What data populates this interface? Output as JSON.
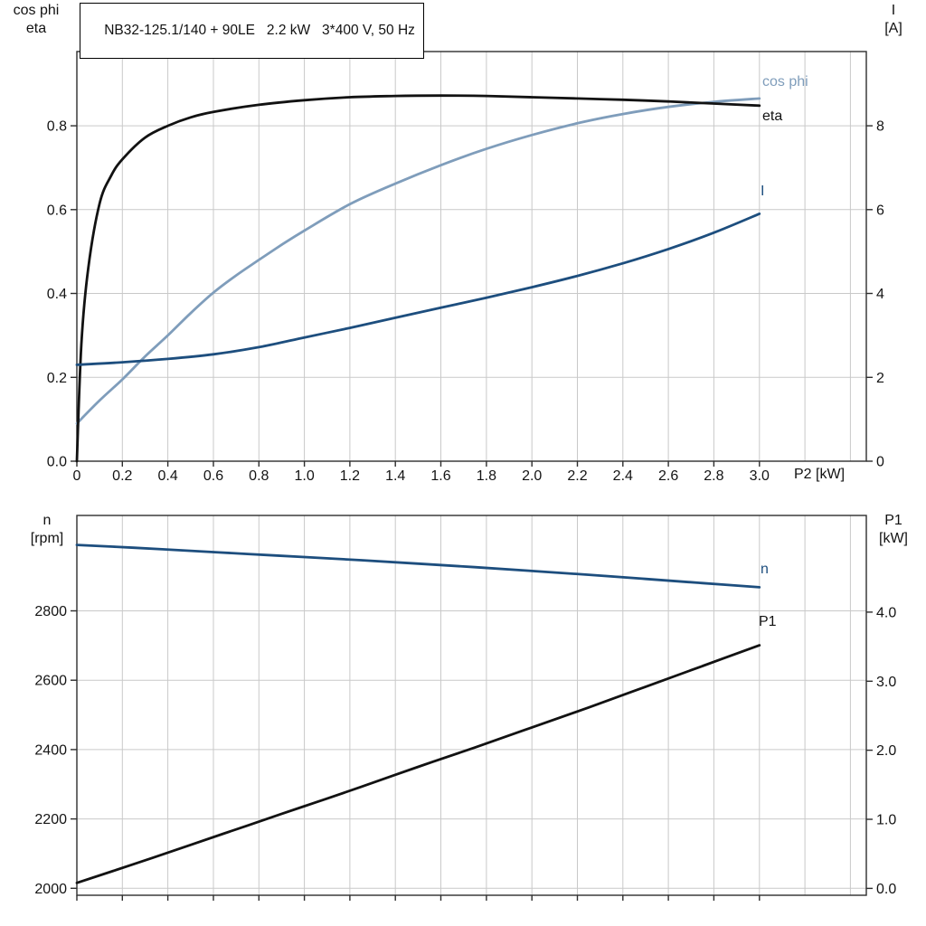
{
  "colors": {
    "background": "#ffffff",
    "grid": "#c9c9c9",
    "axis": "#2e2e2e",
    "curve_black": "#121212",
    "curve_light_blue": "#7f9dbb",
    "curve_dark_blue": "#1d4e7e"
  },
  "chart_data": [
    {
      "type": "line",
      "title": "NB32-125.1/140 + 90LE   2.2 kW   3*400 V, 50 Hz",
      "xlabel": "P2 [kW]",
      "xlim": [
        0,
        3.47
      ],
      "x_tick_values": [
        0,
        0.2,
        0.4,
        0.6,
        0.8,
        1.0,
        1.2,
        1.4,
        1.6,
        1.8,
        2.0,
        2.2,
        2.4,
        2.6,
        2.8,
        3.0
      ],
      "x_tick_labels": [
        "0",
        "0.2",
        "0.4",
        "0.6",
        "0.8",
        "1.0",
        "1.2",
        "1.4",
        "1.6",
        "1.8",
        "2.0",
        "2.2",
        "2.4",
        "2.6",
        "2.8",
        "3.0"
      ],
      "grid_x_values": [
        0.2,
        0.4,
        0.6,
        0.8,
        1.0,
        1.2,
        1.4,
        1.6,
        1.8,
        2.0,
        2.2,
        2.4,
        2.6,
        2.8,
        3.0,
        3.2,
        3.4
      ],
      "left_axis": {
        "title_lines": [
          "cos phi",
          "eta"
        ],
        "lim": [
          0,
          0.977
        ],
        "tick_values": [
          0,
          0.2,
          0.4,
          0.6,
          0.8
        ],
        "tick_labels": [
          "0.0",
          "0.2",
          "0.4",
          "0.6",
          "0.8"
        ]
      },
      "right_axis": {
        "title_lines": [
          "I",
          "[A]"
        ],
        "lim": [
          0,
          9.77
        ],
        "tick_values": [
          0,
          2,
          4,
          6,
          8
        ],
        "tick_labels": [
          "0",
          "2",
          "4",
          "6",
          "8"
        ]
      },
      "series": [
        {
          "name": "cos phi",
          "axis": "left",
          "color_key": "curve_light_blue",
          "points": [
            [
              0,
              0.09
            ],
            [
              0.1,
              0.145
            ],
            [
              0.2,
              0.195
            ],
            [
              0.3,
              0.25
            ],
            [
              0.4,
              0.3
            ],
            [
              0.5,
              0.353
            ],
            [
              0.6,
              0.402
            ],
            [
              0.7,
              0.443
            ],
            [
              0.8,
              0.48
            ],
            [
              0.9,
              0.516
            ],
            [
              1.0,
              0.55
            ],
            [
              1.2,
              0.613
            ],
            [
              1.4,
              0.662
            ],
            [
              1.6,
              0.706
            ],
            [
              1.8,
              0.745
            ],
            [
              2.0,
              0.778
            ],
            [
              2.2,
              0.806
            ],
            [
              2.4,
              0.828
            ],
            [
              2.6,
              0.845
            ],
            [
              2.8,
              0.857
            ],
            [
              3.0,
              0.865
            ]
          ]
        },
        {
          "name": "eta",
          "axis": "left",
          "color_key": "curve_black",
          "points": [
            [
              0,
              0
            ],
            [
              0.02,
              0.28
            ],
            [
              0.05,
              0.46
            ],
            [
              0.1,
              0.615
            ],
            [
              0.15,
              0.68
            ],
            [
              0.2,
              0.72
            ],
            [
              0.3,
              0.772
            ],
            [
              0.4,
              0.8
            ],
            [
              0.5,
              0.82
            ],
            [
              0.6,
              0.833
            ],
            [
              0.8,
              0.85
            ],
            [
              1.0,
              0.861
            ],
            [
              1.2,
              0.868
            ],
            [
              1.4,
              0.871
            ],
            [
              1.6,
              0.872
            ],
            [
              1.8,
              0.871
            ],
            [
              2.0,
              0.868
            ],
            [
              2.2,
              0.865
            ],
            [
              2.4,
              0.862
            ],
            [
              2.6,
              0.858
            ],
            [
              2.8,
              0.853
            ],
            [
              3.0,
              0.848
            ]
          ]
        },
        {
          "name": "I",
          "axis": "right",
          "color_key": "curve_dark_blue",
          "points": [
            [
              0,
              2.3
            ],
            [
              0.2,
              2.36
            ],
            [
              0.4,
              2.44
            ],
            [
              0.6,
              2.55
            ],
            [
              0.8,
              2.72
            ],
            [
              1.0,
              2.95
            ],
            [
              1.2,
              3.18
            ],
            [
              1.4,
              3.42
            ],
            [
              1.6,
              3.66
            ],
            [
              1.8,
              3.9
            ],
            [
              2.0,
              4.15
            ],
            [
              2.2,
              4.42
            ],
            [
              2.4,
              4.72
            ],
            [
              2.6,
              5.06
            ],
            [
              2.8,
              5.45
            ],
            [
              3.0,
              5.9
            ]
          ]
        }
      ]
    },
    {
      "type": "line",
      "title": "",
      "xlabel": "",
      "xlim": [
        0,
        3.47
      ],
      "x_tick_values": [
        0,
        0.2,
        0.4,
        0.6,
        0.8,
        1.0,
        1.2,
        1.4,
        1.6,
        1.8,
        2.0,
        2.2,
        2.4,
        2.6,
        2.8,
        3.0
      ],
      "x_tick_labels": [],
      "grid_x_values": [
        0.2,
        0.4,
        0.6,
        0.8,
        1.0,
        1.2,
        1.4,
        1.6,
        1.8,
        2.0,
        2.2,
        2.4,
        2.6,
        2.8,
        3.0,
        3.2,
        3.4
      ],
      "left_axis": {
        "title_lines": [
          "n",
          "[rpm]"
        ],
        "lim": [
          1980,
          3075
        ],
        "tick_values": [
          2000,
          2200,
          2400,
          2600,
          2800
        ],
        "tick_labels": [
          "2000",
          "2200",
          "2400",
          "2600",
          "2800"
        ]
      },
      "right_axis": {
        "title_lines": [
          "P1",
          "[kW]"
        ],
        "lim": [
          -0.1,
          5.4
        ],
        "tick_values": [
          0,
          1,
          2,
          3,
          4
        ],
        "tick_labels": [
          "0.0",
          "1.0",
          "2.0",
          "3.0",
          "4.0"
        ]
      },
      "series": [
        {
          "name": "n",
          "axis": "left",
          "color_key": "curve_dark_blue",
          "points": [
            [
              0,
              2990
            ],
            [
              0.25,
              2982
            ],
            [
              0.5,
              2973
            ],
            [
              0.75,
              2964
            ],
            [
              1.0,
              2955
            ],
            [
              1.25,
              2946
            ],
            [
              1.5,
              2936
            ],
            [
              1.75,
              2926
            ],
            [
              2.0,
              2915
            ],
            [
              2.25,
              2904
            ],
            [
              2.5,
              2892
            ],
            [
              2.75,
              2880
            ],
            [
              3.0,
              2868
            ]
          ]
        },
        {
          "name": "P1",
          "axis": "right",
          "color_key": "curve_black",
          "points": [
            [
              0,
              0.08
            ],
            [
              0.25,
              0.35
            ],
            [
              0.5,
              0.63
            ],
            [
              0.75,
              0.91
            ],
            [
              1.0,
              1.19
            ],
            [
              1.25,
              1.47
            ],
            [
              1.5,
              1.76
            ],
            [
              1.75,
              2.04
            ],
            [
              2.0,
              2.33
            ],
            [
              2.25,
              2.62
            ],
            [
              2.5,
              2.92
            ],
            [
              2.75,
              3.22
            ],
            [
              3.0,
              3.52
            ]
          ]
        }
      ]
    }
  ]
}
